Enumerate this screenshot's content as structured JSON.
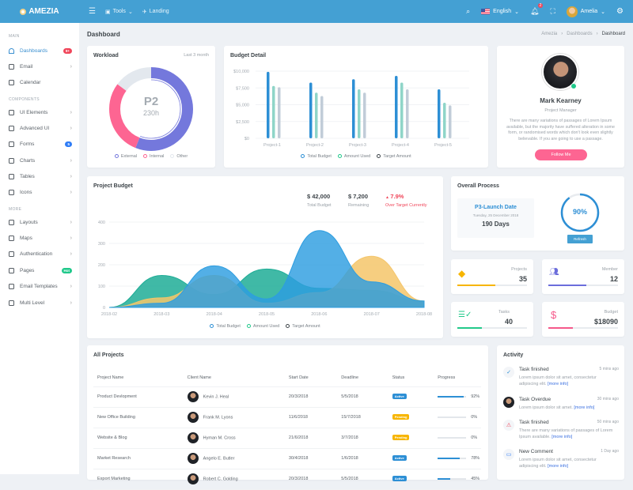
{
  "header": {
    "brand": "AMEZIA",
    "tools": "Tools",
    "landing": "Landing",
    "language": "English",
    "notifications": "2",
    "user": "Amelia"
  },
  "sidebar": {
    "sections": [
      "MAIN",
      "COMPONENTS",
      "MORE"
    ],
    "items": [
      {
        "label": "Dashboards",
        "badge": "9+",
        "badge_color": "#f0465a",
        "active": true
      },
      {
        "label": "Email",
        "chevron": true
      },
      {
        "label": "Calendar"
      },
      {
        "label": "UI Elements",
        "chevron": true
      },
      {
        "label": "Advanced UI",
        "chevron": true
      },
      {
        "label": "Forms",
        "badge": "5",
        "badge_color": "#2f7df6"
      },
      {
        "label": "Charts",
        "chevron": true
      },
      {
        "label": "Tables",
        "chevron": true
      },
      {
        "label": "Icons",
        "chevron": true
      },
      {
        "label": "Layouts",
        "chevron": true
      },
      {
        "label": "Maps",
        "chevron": true
      },
      {
        "label": "Authentication",
        "chevron": true
      },
      {
        "label": "Pages",
        "badge": "Hot",
        "badge_color": "#1fc88a"
      },
      {
        "label": "Email Templates",
        "chevron": true
      },
      {
        "label": "Multi Level",
        "chevron": true
      }
    ]
  },
  "page": {
    "title": "Dashboard",
    "breadcrumb": [
      "Amezia",
      "Dashboards",
      "Dashboard"
    ]
  },
  "workload": {
    "title": "Workload",
    "period": "Last 3 month",
    "center_title": "P2",
    "center_value": "230h"
  },
  "budget_detail": {
    "title": "Budget Detail"
  },
  "profile": {
    "name": "Mark Kearney",
    "role": "Project Manager",
    "bio": "There are many variations of passages of Lorem Ipsum available, but the majority have suffered alteration in some form, or randomised words which don't look even slightly believable. If you are going to use a passage.",
    "button": "Follow Me"
  },
  "project_budget": {
    "title": "Project Budget",
    "stats": [
      {
        "value": "$ 42,000",
        "label": "Total Budget"
      },
      {
        "value": "$ 7,200",
        "label": "Remaining"
      },
      {
        "value": "7.9%",
        "label": "Over Target Currently"
      }
    ]
  },
  "overall": {
    "title": "Overall Process",
    "launch_title": "P3-Launch Date",
    "launch_date": "Tuesday, 25 December 2018",
    "days": "190 Days",
    "percent": 90,
    "percent_label": "90%",
    "refresh": "Refresh"
  },
  "stats": [
    {
      "label": "Projects",
      "value": "35",
      "progress": 55,
      "color": "#f7b500"
    },
    {
      "label": "Member",
      "value": "12",
      "progress": 55,
      "color": "#6b6ddb"
    },
    {
      "label": "Tasks",
      "value": "40",
      "progress": 35,
      "color": "#22c98a"
    },
    {
      "label": "Budget",
      "value": "$18090",
      "progress": 35,
      "color": "#f5588a"
    }
  ],
  "projects": {
    "title": "All Projects",
    "columns": [
      "Project Name",
      "Client Name",
      "Start Date",
      "Deadline",
      "Status",
      "Progress"
    ],
    "rows": [
      {
        "name": "Product Devlopment",
        "client": "Kevin J. Heal",
        "start": "20/3/2018",
        "deadline": "5/5/2018",
        "status": "Active",
        "progress": 92,
        "progress_label": "92%"
      },
      {
        "name": "New Office Building",
        "client": "Frank M. Lyons",
        "start": "11/6/2018",
        "deadline": "15/7/2018",
        "status": "Pending",
        "progress": 0,
        "progress_label": "0%"
      },
      {
        "name": "Website & Blog",
        "client": "Hyman M. Cross",
        "start": "21/6/2018",
        "deadline": "3/7/2018",
        "status": "Pending",
        "progress": 0,
        "progress_label": "0%"
      },
      {
        "name": "Market Research",
        "client": "Angelo E. Butler",
        "start": "30/4/2018",
        "deadline": "1/6/2018",
        "status": "Active",
        "progress": 78,
        "progress_label": "78%"
      },
      {
        "name": "Export Marketing",
        "client": "Robert C. Golding",
        "start": "20/3/2018",
        "deadline": "5/5/2018",
        "status": "Active",
        "progress": 45,
        "progress_label": "45%"
      }
    ]
  },
  "activity": {
    "title": "Activity",
    "link": "[more info]",
    "items": [
      {
        "title": "Task finished",
        "time": "5 mins ago",
        "body": "Lorem ipsum dolor sit amet, consectetur adipiscing elit.",
        "icon": "check-icon"
      },
      {
        "title": "Task Overdue",
        "time": "30 mins ago",
        "body": "Lorem ipsum dolor sit amet.",
        "icon": "avatar"
      },
      {
        "title": "Task finished",
        "time": "50 mins ago",
        "body": "There are many variations of passages of Lorem Ipsum available.",
        "icon": "warning-icon"
      },
      {
        "title": "New Comment",
        "time": "1 Day ago",
        "body": "Lorem ipsum dolor sit amet, consectetur adipiscing elit.",
        "icon": "comment-icon"
      }
    ]
  },
  "chart_data": [
    {
      "type": "pie",
      "title": "Workload",
      "categories": [
        "External",
        "Internal",
        "Other"
      ],
      "values": [
        56,
        29,
        15
      ],
      "colors": [
        "#7478dc",
        "#fd6592",
        "#e3e8ee"
      ]
    },
    {
      "type": "bar",
      "title": "Budget Detail",
      "categories": [
        "Project-1",
        "Project-2",
        "Project-3",
        "Project-4",
        "Project-5"
      ],
      "ylim": [
        0,
        10000
      ],
      "yticks": [
        "$0",
        "$2,500",
        "$5,000",
        "$7,500",
        "$10,000"
      ],
      "series": [
        {
          "name": "Total Budget",
          "color": "#2d8fd5",
          "values": [
            9900,
            8300,
            8800,
            9300,
            7300
          ]
        },
        {
          "name": "Amount Used",
          "color": "#8fd5c8",
          "values": [
            7800,
            6800,
            7300,
            8300,
            5300
          ]
        },
        {
          "name": "Target Amount",
          "color": "#c1ccd8",
          "values": [
            7600,
            6300,
            6800,
            7300,
            4900
          ]
        }
      ]
    },
    {
      "type": "area",
      "title": "Project Budget",
      "x": [
        "2018-02",
        "2018-03",
        "2018-04",
        "2018-05",
        "2018-06",
        "2018-07",
        "2018-08"
      ],
      "ylim": [
        0,
        400
      ],
      "yticks": [
        "0",
        "100",
        "200",
        "300",
        "400"
      ],
      "series": [
        {
          "name": "Total Budget",
          "color": "#2d9de0",
          "values": [
            0,
            20,
            195,
            40,
            360,
            120,
            30
          ]
        },
        {
          "name": "Amount Used",
          "color": "#1fad96",
          "values": [
            0,
            150,
            60,
            180,
            90,
            80,
            30
          ]
        },
        {
          "name": "Target Amount",
          "color": "#f4c56a",
          "values": [
            0,
            45,
            150,
            20,
            70,
            240,
            30
          ]
        }
      ],
      "legend_colors": [
        "#2d8fd5",
        "#1fc88a",
        "#3d4449"
      ]
    }
  ]
}
